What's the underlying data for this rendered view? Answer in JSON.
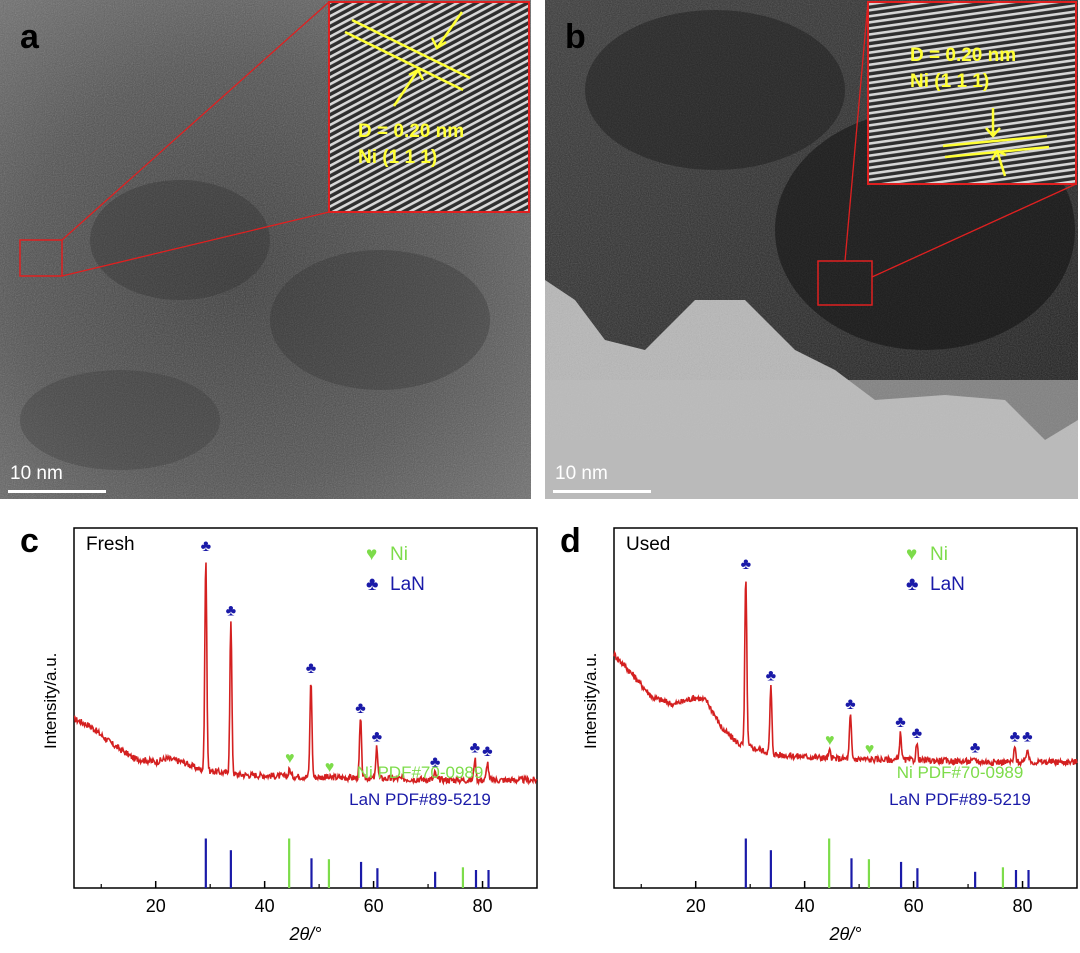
{
  "panels": {
    "a": {
      "label": "a",
      "scale_bar": "10 nm",
      "inset_spacing": "D = 0.20 nm",
      "inset_plane": "Ni (1 1 1)"
    },
    "b": {
      "label": "b",
      "scale_bar": "10 nm",
      "inset_spacing": "D = 0.20 nm",
      "inset_plane": "Ni (1 1 1)"
    }
  },
  "chart_data": [
    {
      "id": "c",
      "type": "line",
      "label": "c",
      "title": "Fresh",
      "xlabel": "2θ/°",
      "ylabel": "Intensity/a.u.",
      "xlim": [
        5,
        90
      ],
      "xticks": [
        20,
        40,
        60,
        80
      ],
      "legend": [
        {
          "symbol": "♥",
          "name": "Ni",
          "color": "#7ddc4a"
        },
        {
          "symbol": "♣",
          "name": "LaN",
          "color": "#1a1aa8"
        }
      ],
      "series_color": "#d42020",
      "baseline": {
        "x": [
          5,
          8,
          12,
          16,
          20,
          22,
          25,
          28,
          35,
          45,
          60,
          75,
          90
        ],
        "y": [
          0.47,
          0.45,
          0.4,
          0.36,
          0.35,
          0.36,
          0.35,
          0.33,
          0.315,
          0.31,
          0.305,
          0.3,
          0.3
        ]
      },
      "peaks": [
        {
          "x": 29.2,
          "height": 0.92,
          "phase": "LaN"
        },
        {
          "x": 33.8,
          "height": 0.74,
          "phase": "LaN"
        },
        {
          "x": 44.6,
          "height": 0.33,
          "phase": "Ni"
        },
        {
          "x": 48.5,
          "height": 0.58,
          "phase": "LaN"
        },
        {
          "x": 51.9,
          "height": 0.305,
          "phase": "Ni"
        },
        {
          "x": 57.6,
          "height": 0.47,
          "phase": "LaN"
        },
        {
          "x": 60.6,
          "height": 0.39,
          "phase": "LaN"
        },
        {
          "x": 71.3,
          "height": 0.32,
          "phase": "LaN"
        },
        {
          "x": 78.6,
          "height": 0.36,
          "phase": "LaN"
        },
        {
          "x": 80.9,
          "height": 0.35,
          "phase": "LaN"
        }
      ],
      "reference_labels": {
        "ni": "Ni PDF#70-0989",
        "lan": "LaN PDF#89-5219"
      },
      "reference_lines": {
        "Ni": [
          {
            "x": 44.5,
            "height": 0.55
          },
          {
            "x": 51.8,
            "height": 0.32
          },
          {
            "x": 76.4,
            "height": 0.23
          }
        ],
        "LaN": [
          {
            "x": 29.2,
            "height": 0.55
          },
          {
            "x": 33.8,
            "height": 0.42
          },
          {
            "x": 48.6,
            "height": 0.33
          },
          {
            "x": 57.7,
            "height": 0.29
          },
          {
            "x": 60.7,
            "height": 0.22
          },
          {
            "x": 71.3,
            "height": 0.18
          },
          {
            "x": 78.8,
            "height": 0.2
          },
          {
            "x": 81.1,
            "height": 0.2
          }
        ]
      }
    },
    {
      "id": "d",
      "type": "line",
      "label": "d",
      "title": "Used",
      "xlabel": "2θ/°",
      "ylabel": "Intensity/a.u.",
      "xlim": [
        5,
        90
      ],
      "xticks": [
        20,
        40,
        60,
        80
      ],
      "legend": [
        {
          "symbol": "♥",
          "name": "Ni",
          "color": "#7ddc4a"
        },
        {
          "symbol": "♣",
          "name": "LaN",
          "color": "#1a1aa8"
        }
      ],
      "series_color": "#d42020",
      "baseline": {
        "x": [
          5,
          8,
          12,
          16,
          20,
          22,
          25,
          28,
          35,
          45,
          60,
          75,
          90
        ],
        "y": [
          0.65,
          0.6,
          0.53,
          0.51,
          0.53,
          0.52,
          0.44,
          0.4,
          0.37,
          0.36,
          0.355,
          0.35,
          0.35
        ]
      },
      "peaks": [
        {
          "x": 29.2,
          "height": 0.87,
          "phase": "LaN"
        },
        {
          "x": 33.8,
          "height": 0.56,
          "phase": "LaN"
        },
        {
          "x": 44.6,
          "height": 0.38,
          "phase": "Ni"
        },
        {
          "x": 48.4,
          "height": 0.48,
          "phase": "LaN"
        },
        {
          "x": 51.9,
          "height": 0.355,
          "phase": "Ni"
        },
        {
          "x": 57.6,
          "height": 0.43,
          "phase": "LaN"
        },
        {
          "x": 60.6,
          "height": 0.4,
          "phase": "LaN"
        },
        {
          "x": 71.3,
          "height": 0.36,
          "phase": "LaN"
        },
        {
          "x": 78.6,
          "height": 0.39,
          "phase": "LaN"
        },
        {
          "x": 80.9,
          "height": 0.39,
          "phase": "LaN"
        }
      ],
      "reference_labels": {
        "ni": "Ni PDF#70-0989",
        "lan": "LaN PDF#89-5219"
      },
      "reference_lines": {
        "Ni": [
          {
            "x": 44.5,
            "height": 0.55
          },
          {
            "x": 51.8,
            "height": 0.32
          },
          {
            "x": 76.4,
            "height": 0.23
          }
        ],
        "LaN": [
          {
            "x": 29.2,
            "height": 0.55
          },
          {
            "x": 33.8,
            "height": 0.42
          },
          {
            "x": 48.6,
            "height": 0.33
          },
          {
            "x": 57.7,
            "height": 0.29
          },
          {
            "x": 60.7,
            "height": 0.22
          },
          {
            "x": 71.3,
            "height": 0.18
          },
          {
            "x": 78.8,
            "height": 0.2
          },
          {
            "x": 81.1,
            "height": 0.2
          }
        ]
      }
    }
  ]
}
